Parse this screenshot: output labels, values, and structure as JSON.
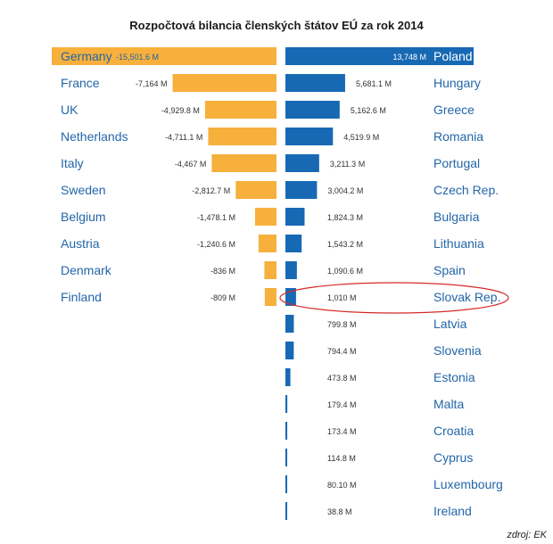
{
  "chart_data": {
    "type": "bar",
    "title": "Rozpočtová bilancia členských štátov EÚ za rok 2014",
    "source": "zdroj: EK",
    "colors": {
      "negative": "#f7b03c",
      "positive": "#1769b4",
      "highlight_ring": "#d42a2a",
      "label": "#2366a8"
    },
    "highlighted": "Slovak Rep.",
    "negative": [
      {
        "name": "Germany",
        "value": -15501.6,
        "label": "-15,501.6 M"
      },
      {
        "name": "France",
        "value": -7164,
        "label": "-7,164 M"
      },
      {
        "name": "UK",
        "value": -4929.8,
        "label": "-4,929.8 M"
      },
      {
        "name": "Netherlands",
        "value": -4711.1,
        "label": "-4,711.1 M"
      },
      {
        "name": "Italy",
        "value": -4467,
        "label": "-4,467 M"
      },
      {
        "name": "Sweden",
        "value": -2812.7,
        "label": "-2,812.7 M"
      },
      {
        "name": "Belgium",
        "value": -1478.1,
        "label": "-1,478.1 M"
      },
      {
        "name": "Austria",
        "value": -1240.6,
        "label": "-1,240.6 M"
      },
      {
        "name": "Denmark",
        "value": -836,
        "label": "-836 M"
      },
      {
        "name": "Finland",
        "value": -809,
        "label": "-809 M"
      }
    ],
    "positive": [
      {
        "name": "Poland",
        "value": 13748,
        "label": "13,748 M"
      },
      {
        "name": "Hungary",
        "value": 5681.1,
        "label": "5,681.1 M"
      },
      {
        "name": "Greece",
        "value": 5162.6,
        "label": "5,162.6 M"
      },
      {
        "name": "Romania",
        "value": 4519.9,
        "label": "4,519.9 M"
      },
      {
        "name": "Portugal",
        "value": 3211.3,
        "label": "3,211.3 M"
      },
      {
        "name": "Czech Rep.",
        "value": 3004.2,
        "label": "3,004.2 M"
      },
      {
        "name": "Bulgaria",
        "value": 1824.3,
        "label": "1,824.3 M"
      },
      {
        "name": "Lithuania",
        "value": 1543.2,
        "label": "1,543.2 M"
      },
      {
        "name": "Spain",
        "value": 1090.6,
        "label": "1,090.6 M"
      },
      {
        "name": "Slovak Rep.",
        "value": 1010,
        "label": "1,010 M"
      },
      {
        "name": "Latvia",
        "value": 799.8,
        "label": "799.8 M"
      },
      {
        "name": "Slovenia",
        "value": 794.4,
        "label": "794.4 M"
      },
      {
        "name": "Estonia",
        "value": 473.8,
        "label": "473.8 M"
      },
      {
        "name": "Malta",
        "value": 179.4,
        "label": "179.4 M"
      },
      {
        "name": "Croatia",
        "value": 173.4,
        "label": "173.4 M"
      },
      {
        "name": "Cyprus",
        "value": 114.8,
        "label": "114.8 M"
      },
      {
        "name": "Luxembourg",
        "value": 80.1,
        "label": "80.10 M"
      },
      {
        "name": "Ireland",
        "value": 38.8,
        "label": "38.8 M"
      }
    ]
  }
}
